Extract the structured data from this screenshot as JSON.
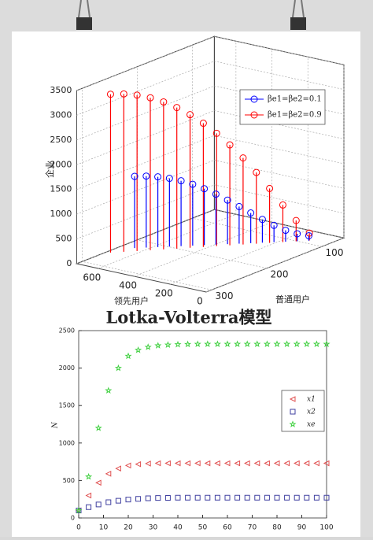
{
  "chart_data": [
    {
      "type": "stem3d",
      "xlabel": "普通用户",
      "ylabel": "领先用户",
      "zlabel": "企业",
      "xlim": [
        60,
        310
      ],
      "ylim": [
        0,
        720
      ],
      "zlim": [
        0,
        3500
      ],
      "xticks": [
        100,
        200,
        300
      ],
      "yticks": [
        0,
        200,
        400,
        600
      ],
      "zticks": [
        0,
        500,
        1000,
        1500,
        2000,
        2500,
        3000,
        3500
      ],
      "grid": true,
      "legend": "upper right",
      "series": [
        {
          "name": "βe1=βe2=0.1",
          "color": "#0000ff",
          "marker": "circle",
          "x": [
            226,
            217,
            208,
            199,
            190,
            181,
            172,
            163,
            154,
            145,
            136,
            127,
            118,
            109,
            100,
            91
          ],
          "y": [
            655,
            618,
            581,
            544,
            507,
            470,
            433,
            396,
            359,
            322,
            285,
            248,
            211,
            174,
            137,
            100
          ],
          "z": [
            1450,
            1445,
            1420,
            1380,
            1320,
            1240,
            1140,
            1020,
            890,
            750,
            610,
            470,
            340,
            230,
            150,
            100
          ]
        },
        {
          "name": "βe1=βe2=0.9",
          "color": "#ff0000",
          "marker": "circle",
          "x": [
            255,
            244,
            233,
            222,
            211,
            200,
            189,
            178,
            167,
            156,
            145,
            134,
            123,
            112,
            101,
            90
          ],
          "y": [
            700,
            660,
            620,
            580,
            540,
            500,
            460,
            420,
            380,
            340,
            300,
            260,
            220,
            180,
            140,
            100
          ],
          "z": [
            3200,
            3190,
            3150,
            3080,
            2980,
            2850,
            2690,
            2500,
            2280,
            2030,
            1750,
            1440,
            1100,
            750,
            420,
            150
          ]
        }
      ]
    },
    {
      "type": "scatter",
      "title": "Lotka-Volterra模型",
      "ylabel": "N",
      "xlim": [
        0,
        100
      ],
      "ylim": [
        0,
        2500
      ],
      "xticks": [
        0,
        10,
        20,
        30,
        40,
        50,
        60,
        70,
        80,
        90,
        100
      ],
      "yticks": [
        0,
        500,
        1000,
        1500,
        2000,
        2500
      ],
      "legend": "right",
      "x": [
        0,
        4,
        8,
        12,
        16,
        20,
        24,
        28,
        32,
        36,
        40,
        44,
        48,
        52,
        56,
        60,
        64,
        68,
        72,
        76,
        80,
        84,
        88,
        92,
        96,
        100
      ],
      "series": [
        {
          "name": "x1",
          "color": "#e05050",
          "marker": "triangle-left",
          "values": [
            100,
            300,
            470,
            590,
            660,
            700,
            718,
            726,
            730,
            730,
            730,
            730,
            730,
            730,
            730,
            730,
            730,
            730,
            730,
            730,
            730,
            730,
            730,
            730,
            730,
            730
          ]
        },
        {
          "name": "x2",
          "color": "#4040a0",
          "marker": "square",
          "values": [
            100,
            145,
            180,
            210,
            230,
            245,
            255,
            262,
            266,
            268,
            270,
            270,
            270,
            270,
            270,
            270,
            270,
            270,
            270,
            270,
            270,
            270,
            270,
            270,
            270,
            270
          ]
        },
        {
          "name": "xe",
          "color": "#40d040",
          "marker": "star",
          "values": [
            100,
            550,
            1200,
            1700,
            2000,
            2160,
            2240,
            2280,
            2300,
            2310,
            2315,
            2318,
            2320,
            2320,
            2320,
            2320,
            2320,
            2320,
            2320,
            2320,
            2320,
            2320,
            2320,
            2320,
            2320,
            2320
          ]
        }
      ]
    }
  ]
}
